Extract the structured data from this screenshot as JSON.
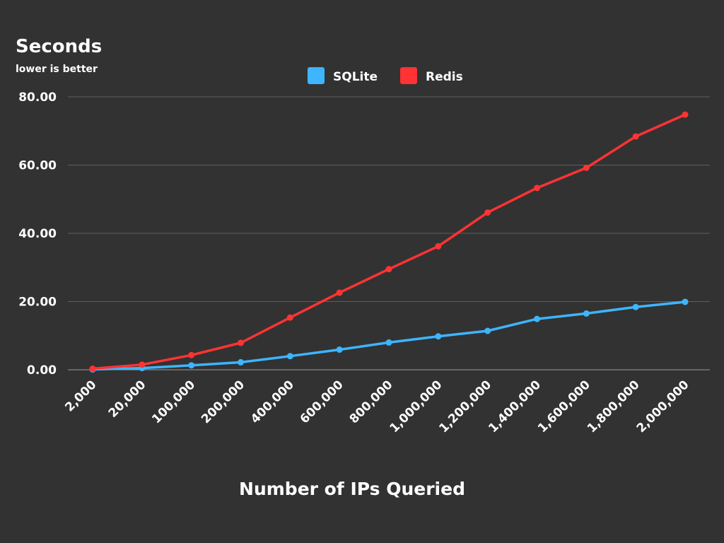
{
  "chart_data": {
    "type": "line",
    "title": "Seconds",
    "subtitle": "lower is better",
    "xlabel": "Number of IPs Queried",
    "ylabel": "Seconds",
    "ylim": [
      0,
      80
    ],
    "yticks": [
      "0.00",
      "20.00",
      "40.00",
      "60.00",
      "80.00"
    ],
    "ytick_values": [
      0,
      20,
      40,
      60,
      80
    ],
    "categories": [
      "2,000",
      "20,000",
      "100,000",
      "200,000",
      "400,000",
      "600,000",
      "800,000",
      "1,000,000",
      "1,200,000",
      "1,400,000",
      "1,600,000",
      "1,800,000",
      "2,000,000"
    ],
    "grid": true,
    "legend_position": "top-center",
    "series": [
      {
        "name": "SQLite",
        "color": "#3db5ff",
        "values": [
          0.1,
          0.5,
          1.3,
          2.2,
          4.0,
          5.9,
          8.0,
          9.8,
          11.4,
          14.9,
          16.5,
          18.4,
          19.9
        ]
      },
      {
        "name": "Redis",
        "color": "#ff3333",
        "values": [
          0.3,
          1.5,
          4.3,
          7.9,
          15.3,
          22.6,
          29.5,
          36.2,
          46.1,
          53.3,
          59.2,
          68.4,
          74.8
        ]
      }
    ]
  }
}
